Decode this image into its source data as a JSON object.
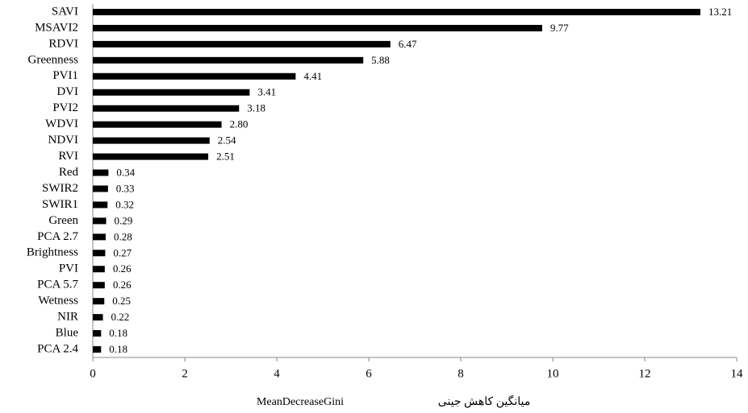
{
  "chart_data": {
    "type": "bar",
    "orientation": "horizontal",
    "categories": [
      "SAVI",
      "MSAVI2",
      "RDVI",
      "Greenness",
      "PVI1",
      "DVI",
      "PVI2",
      "WDVI",
      "NDVI",
      "RVI",
      "Red",
      "SWIR2",
      "SWIR1",
      "Green",
      "PCA 2.7",
      "Brightness",
      "PVI",
      "PCA 5.7",
      "Wetness",
      "NIR",
      "Blue",
      "PCA 2.4"
    ],
    "values": [
      13.21,
      9.77,
      6.47,
      5.88,
      4.41,
      3.41,
      3.18,
      2.8,
      2.54,
      2.51,
      0.34,
      0.33,
      0.32,
      0.29,
      0.28,
      0.27,
      0.26,
      0.26,
      0.25,
      0.22,
      0.18,
      0.18
    ],
    "value_labels": [
      "13.21",
      "9.77",
      "6.47",
      "5.88",
      "4.41",
      "3.41",
      "3.18",
      "2.80",
      "2.54",
      "2.51",
      "0.34",
      "0.33",
      "0.32",
      "0.29",
      "0.28",
      "0.27",
      "0.26",
      "0.26",
      "0.25",
      "0.22",
      "0.18",
      "0.18"
    ],
    "color": "#000000",
    "xlim": [
      0,
      14
    ],
    "xticks": [
      0,
      2,
      4,
      6,
      8,
      10,
      12,
      14
    ],
    "xlabel": [
      "MeanDecreaseGini",
      "میانگین کاهش جینی"
    ]
  }
}
